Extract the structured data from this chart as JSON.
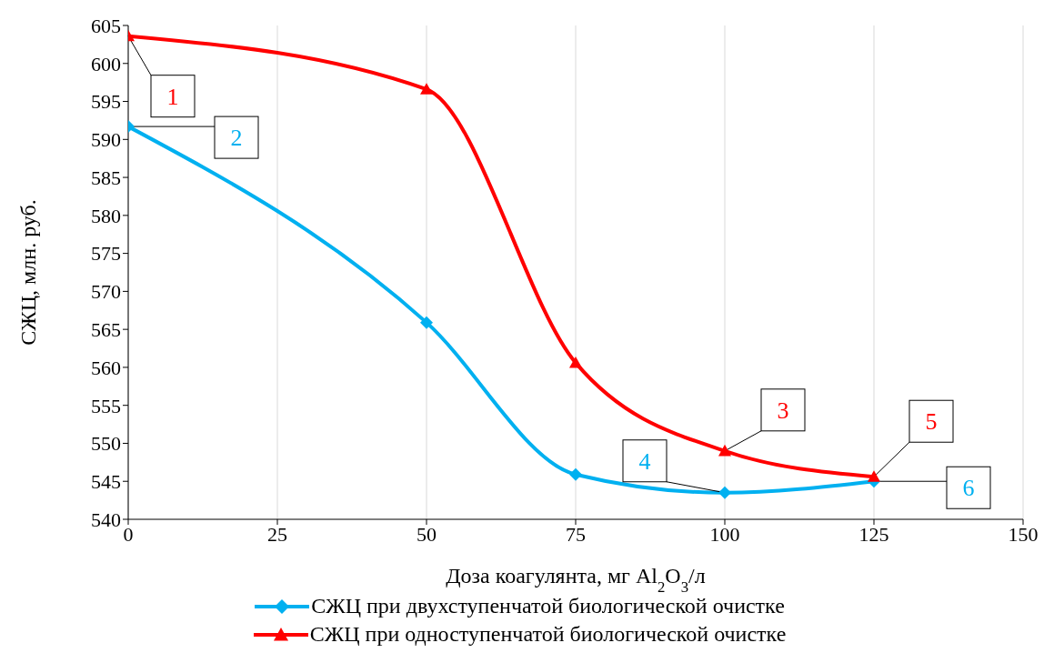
{
  "chart_data": {
    "type": "line",
    "xlabel": "Доза коагулянта, мг Al$_{2}$O$_{3}$/л",
    "ylabel": "СЖЦ, млн. руб.",
    "x": [
      0,
      50,
      75,
      100,
      125
    ],
    "series": [
      {
        "name": "СЖЦ при двухступенчатой биологической очистке",
        "color": "#00b0f0",
        "marker": "diamond",
        "values": [
          591.7,
          565.9,
          545.9,
          543.5,
          545.0
        ]
      },
      {
        "name": "СЖЦ при одноступенчатой биологической очистке",
        "color": "#ff0000",
        "marker": "triangle",
        "values": [
          603.6,
          596.6,
          560.6,
          549.0,
          545.6
        ]
      }
    ],
    "xlim": [
      0,
      150
    ],
    "xticks": [
      0,
      25,
      50,
      75,
      100,
      125,
      150
    ],
    "ylim": [
      540,
      605
    ],
    "yticks": [
      540,
      545,
      550,
      555,
      560,
      565,
      570,
      575,
      580,
      585,
      590,
      595,
      600,
      605
    ],
    "grid": "x",
    "legend": "bottom",
    "annotations": [
      {
        "text": "1",
        "x": 0,
        "y": 603.6
      },
      {
        "text": "2",
        "x": 0,
        "y": 591.7
      },
      {
        "text": "3",
        "x": 100,
        "y": 549.0
      },
      {
        "text": "4",
        "x": 100,
        "y": 543.5
      },
      {
        "text": "5",
        "x": 125,
        "y": 545.6
      },
      {
        "text": "6",
        "x": 125,
        "y": 545.0
      }
    ]
  }
}
